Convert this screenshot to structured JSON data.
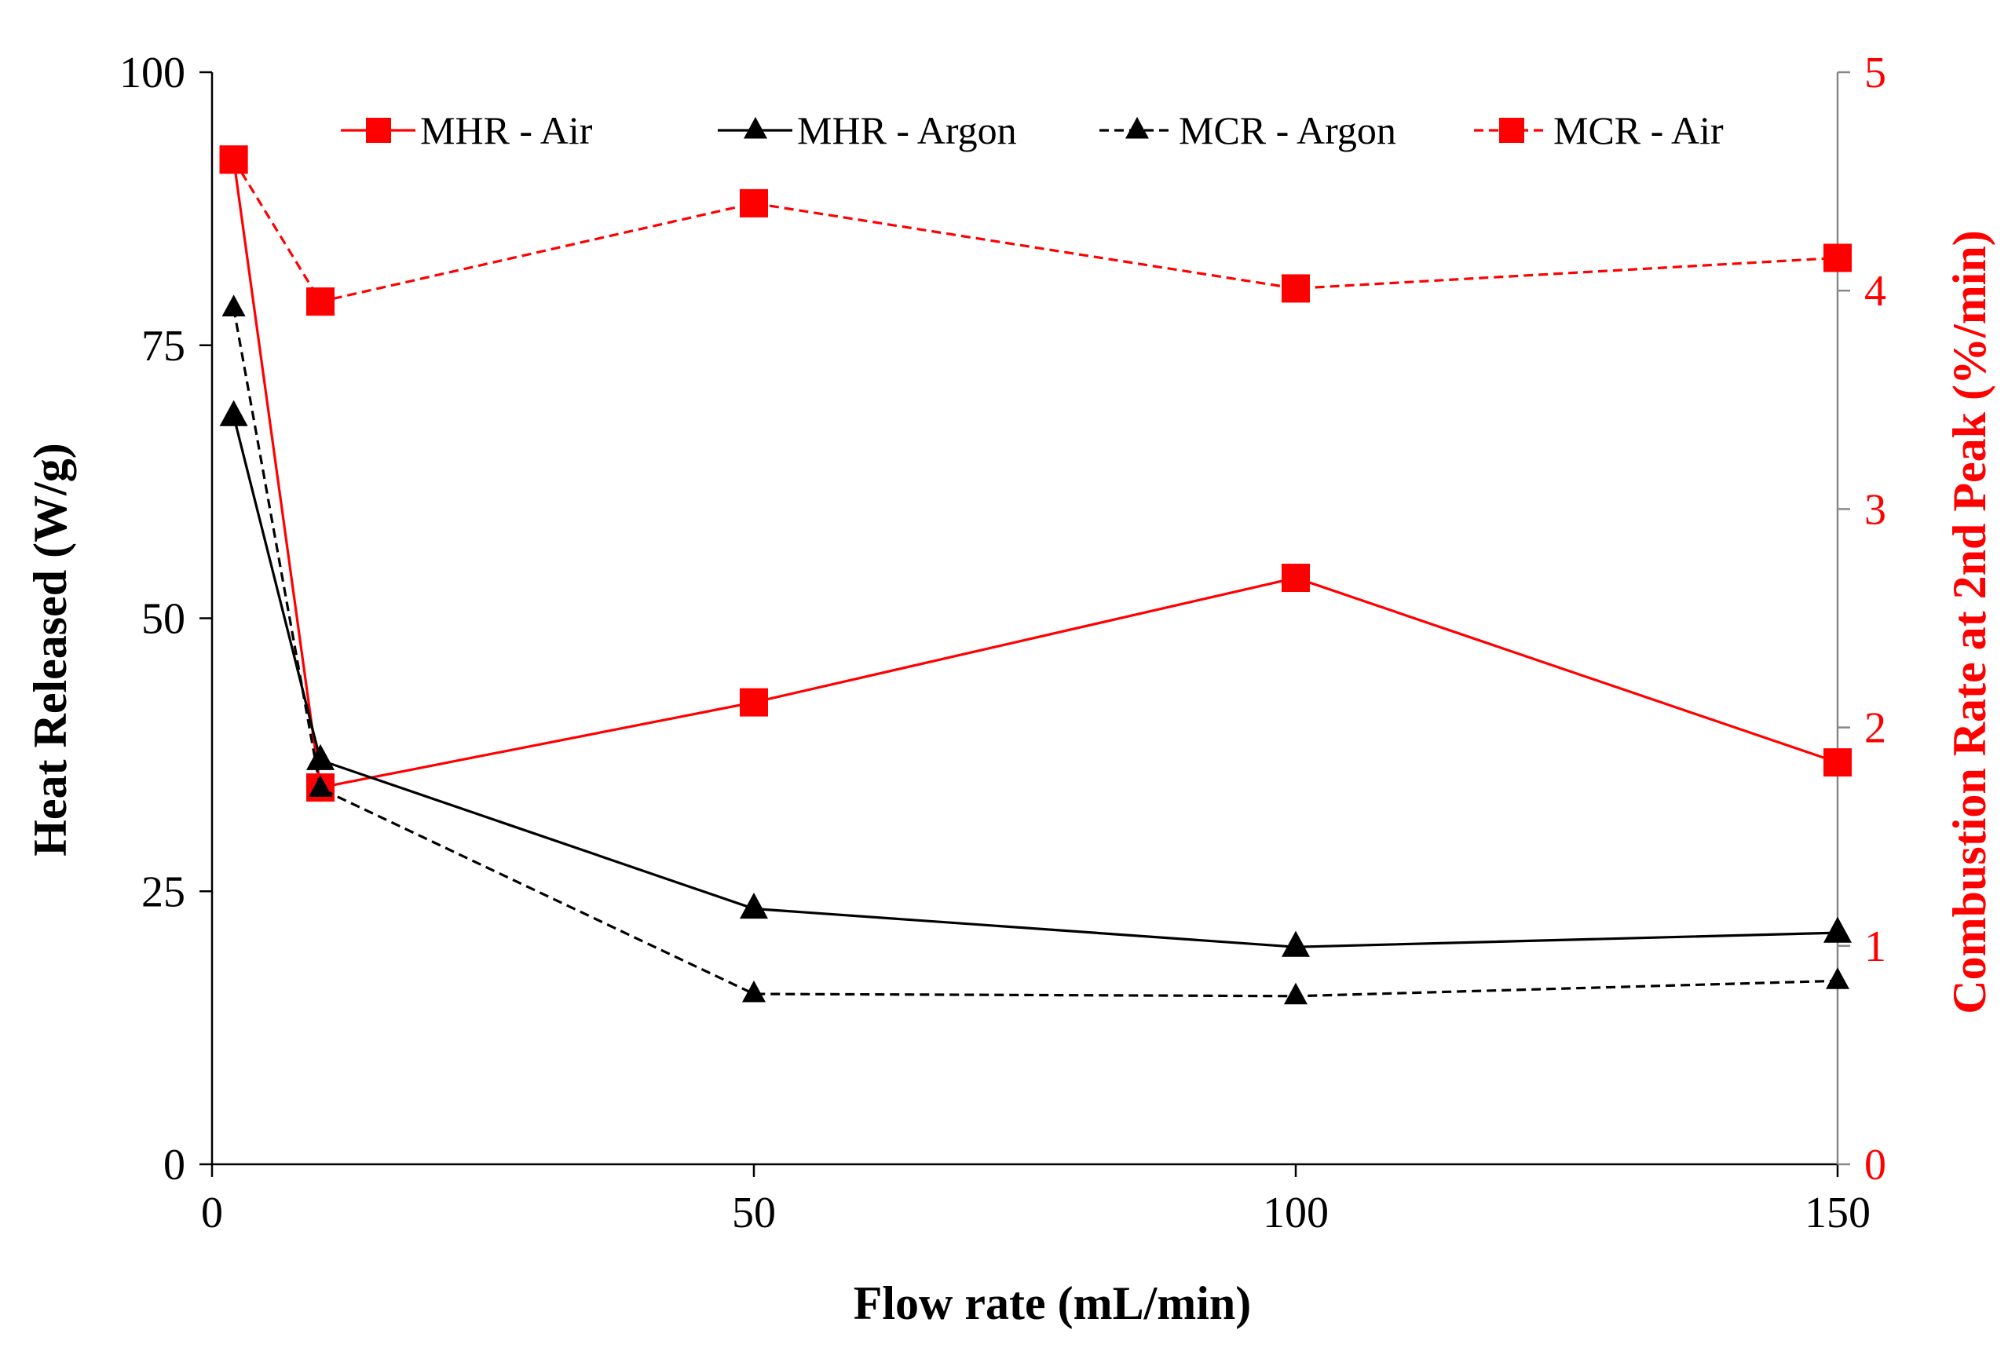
{
  "chart_data": {
    "type": "line",
    "title": "",
    "xlabel": "Flow rate (mL/min)",
    "ylabel_left": "Heat Released (W/g)",
    "ylabel_right": "Combustion Rate at 2nd Peak (%/min)",
    "xlim": [
      0,
      150
    ],
    "ylim_left": [
      0,
      100
    ],
    "ylim_right": [
      0,
      5
    ],
    "x_ticks": [
      "0",
      "50",
      "100",
      "150"
    ],
    "y_ticks_left": [
      "0",
      "25",
      "50",
      "75",
      "100"
    ],
    "y_ticks_right": [
      "0",
      "1",
      "2",
      "3",
      "4",
      "5"
    ],
    "grid": false,
    "legend_position": "top",
    "x": [
      2,
      10,
      50,
      100,
      150
    ],
    "series": [
      {
        "name": "MHR - Air",
        "axis": "left",
        "style": "solid",
        "marker": "square",
        "color": "#ff0000",
        "values": [
          92,
          34.5,
          42.3,
          53.7,
          36.8
        ]
      },
      {
        "name": "MHR - Argon",
        "axis": "left",
        "style": "solid",
        "marker": "triangle",
        "color": "#000000",
        "values": [
          68.5,
          37,
          23.4,
          19.9,
          21.2
        ]
      },
      {
        "name": "MCR - Argon",
        "axis": "right",
        "style": "dashed",
        "marker": "triangle",
        "color": "#000000",
        "values": [
          3.92,
          1.72,
          0.78,
          0.77,
          0.84
        ]
      },
      {
        "name": "MCR - Air",
        "axis": "right",
        "style": "dashed",
        "marker": "square",
        "color": "#ff0000",
        "values": [
          4.6,
          3.95,
          4.4,
          4.01,
          4.15
        ]
      }
    ]
  }
}
